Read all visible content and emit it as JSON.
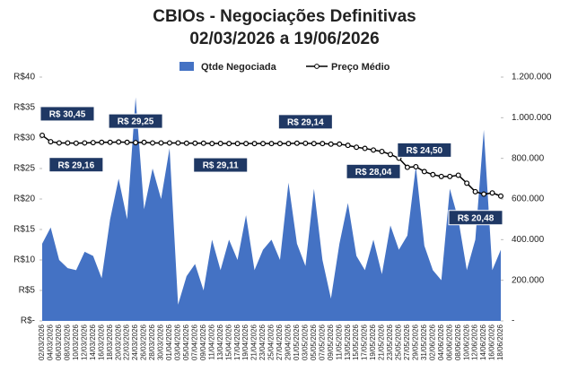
{
  "chart_data": {
    "type": "combo",
    "title": "CBIOs - Negociações Definitivas",
    "subtitle": "02/03/2026 a 19/06/2026",
    "categories": [
      "02/03/2026",
      "04/03/2026",
      "06/03/2026",
      "08/03/2026",
      "10/03/2026",
      "12/03/2026",
      "14/03/2026",
      "16/03/2026",
      "18/03/2026",
      "20/03/2026",
      "22/03/2026",
      "24/03/2026",
      "26/03/2026",
      "28/03/2026",
      "30/03/2026",
      "01/04/2026",
      "03/04/2026",
      "05/04/2026",
      "07/04/2026",
      "09/04/2026",
      "11/04/2026",
      "13/04/2026",
      "15/04/2026",
      "17/04/2026",
      "19/04/2026",
      "21/04/2026",
      "23/04/2026",
      "25/04/2026",
      "27/04/2026",
      "29/04/2026",
      "01/05/2026",
      "03/05/2026",
      "05/05/2026",
      "07/05/2026",
      "09/05/2026",
      "11/05/2026",
      "13/05/2026",
      "15/05/2026",
      "17/05/2026",
      "19/05/2026",
      "21/05/2026",
      "23/05/2026",
      "25/05/2026",
      "27/05/2026",
      "29/05/2026",
      "31/05/2026",
      "02/06/2026",
      "04/06/2026",
      "06/06/2026",
      "08/06/2026",
      "10/06/2026",
      "12/06/2026",
      "14/06/2026",
      "16/06/2026",
      "18/06/2026"
    ],
    "series": [
      {
        "name": "Qtde Negociada",
        "type": "area",
        "color": "#4472c4",
        "axis": "y2",
        "values": [
          380000,
          460000,
          300000,
          260000,
          250000,
          340000,
          320000,
          210000,
          500000,
          700000,
          500000,
          1100000,
          550000,
          750000,
          600000,
          850000,
          80000,
          220000,
          280000,
          150000,
          400000,
          250000,
          400000,
          300000,
          520000,
          250000,
          350000,
          400000,
          300000,
          680000,
          380000,
          270000,
          650000,
          300000,
          110000,
          380000,
          580000,
          320000,
          250000,
          400000,
          230000,
          470000,
          350000,
          420000,
          760000,
          370000,
          250000,
          200000,
          650000,
          500000,
          250000,
          400000,
          940000,
          250000,
          350000
        ]
      },
      {
        "name": "Preço Médio",
        "type": "line",
        "color": "#000000",
        "axis": "y",
        "values": [
          30.45,
          29.4,
          29.2,
          29.2,
          29.16,
          29.2,
          29.25,
          29.3,
          29.3,
          29.35,
          29.3,
          29.25,
          29.3,
          29.2,
          29.2,
          29.2,
          29.2,
          29.15,
          29.15,
          29.15,
          29.1,
          29.11,
          29.1,
          29.1,
          29.1,
          29.1,
          29.1,
          29.1,
          29.1,
          29.1,
          29.15,
          29.14,
          29.1,
          29.1,
          29.0,
          29.0,
          28.8,
          28.5,
          28.3,
          28.04,
          27.8,
          27.3,
          26.7,
          25.2,
          25.3,
          24.5,
          24.0,
          23.7,
          23.7,
          23.9,
          22.6,
          21.2,
          20.8,
          21.0,
          20.48
        ],
        "value_labels": [
          "R$ 30,45",
          null,
          null,
          null,
          "R$ 29,16",
          null,
          null,
          null,
          null,
          null,
          null,
          "R$ 29,25",
          null,
          null,
          null,
          null,
          null,
          null,
          null,
          null,
          null,
          "R$ 29,11",
          null,
          null,
          null,
          null,
          null,
          null,
          null,
          null,
          null,
          "R$ 29,14",
          null,
          null,
          null,
          null,
          null,
          null,
          null,
          "R$ 28,04",
          null,
          null,
          null,
          null,
          null,
          "R$ 24,50",
          null,
          null,
          null,
          null,
          null,
          null,
          null,
          null,
          "R$ 20,48"
        ]
      }
    ],
    "ylim": [
      0,
      40
    ],
    "yticks": [
      {
        "value": 0,
        "label": "R$-"
      },
      {
        "value": 5,
        "label": "R$5"
      },
      {
        "value": 10,
        "label": "R$10"
      },
      {
        "value": 15,
        "label": "R$15"
      },
      {
        "value": 20,
        "label": "R$20"
      },
      {
        "value": 25,
        "label": "R$25"
      },
      {
        "value": 30,
        "label": "R$30"
      },
      {
        "value": 35,
        "label": "R$35"
      },
      {
        "value": 40,
        "label": "R$40"
      }
    ],
    "y2lim": [
      0,
      1200000
    ],
    "y2ticks": [
      {
        "value": 0,
        "label": "-"
      },
      {
        "value": 200000,
        "label": "200.000"
      },
      {
        "value": 400000,
        "label": "400.000"
      },
      {
        "value": 600000,
        "label": "600.000"
      },
      {
        "value": 800000,
        "label": "800.000"
      },
      {
        "value": 1000000,
        "label": "1.000.000"
      },
      {
        "value": 1200000,
        "label": "1.200.000"
      }
    ],
    "legend": "top"
  }
}
